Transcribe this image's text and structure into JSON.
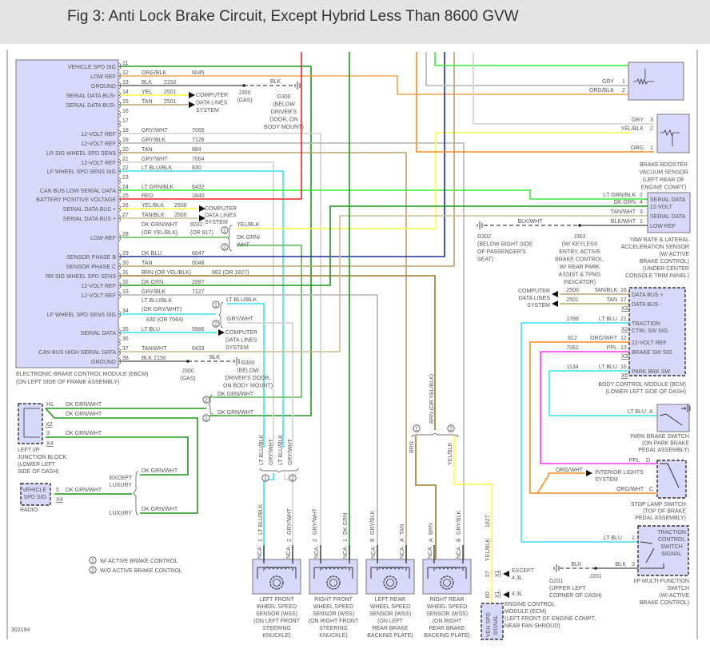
{
  "title": "Fig 3: Anti Lock Brake Circuit, Except Hybrid Less Than 8600 GVW",
  "figure_number": "302194",
  "wire_colors": {
    "dkgrn": "#1a9a1a",
    "dkgrnwht": "#5cb85c",
    "orgblk": "#f2a34e",
    "org": "#ff8a1a",
    "blk": "#666666",
    "yel": "#ffff3a",
    "tan": "#b9a46c",
    "grywht": "#d0d0d0",
    "gryblk": "#b4b4b4",
    "ltblu": "#38e4ec",
    "ltgrn": "#33ee33",
    "red": "#ff2222",
    "dkblu": "#1a2f9c",
    "brn": "#9c7a2c",
    "ppl": "#ff33ff",
    "tanwht": "#cbbd94",
    "module_fill": "#d8d8fb"
  },
  "ebcm": {
    "name_lines": [
      "ELECTRONIC BRAKE CONTROL MODULE (EBCM)",
      "(ON LEFT SIDE OF FRAME ASSEMBLY)"
    ],
    "pins": [
      {
        "pin": "11",
        "label": "VEHICLE SPD SIG",
        "wire": "",
        "circuit": ""
      },
      {
        "pin": "12",
        "label": "LOW REF",
        "wire": "ORG/BLK",
        "circuit": "6045"
      },
      {
        "pin": "13",
        "label": "GROUND",
        "wire": "BLK",
        "circuit": "2150"
      },
      {
        "pin": "14",
        "label": "SERIAL DATA BUS-",
        "wire": "YEL",
        "circuit": "2501"
      },
      {
        "pin": "15",
        "label": "SERIAL DATA BUS-",
        "wire": "TAN",
        "circuit": "2501"
      },
      {
        "pin": "16",
        "label": "",
        "wire": "",
        "circuit": ""
      },
      {
        "pin": "17",
        "label": "",
        "wire": "",
        "circuit": ""
      },
      {
        "pin": "18",
        "label": "12-VOLT REF",
        "wire": "GRY/WHT",
        "circuit": "7065"
      },
      {
        "pin": "19",
        "label": "12-VOLT REF",
        "wire": "GRY/BLK",
        "circuit": "7126"
      },
      {
        "pin": "20",
        "label": "LR SIG WHEEL SPD SENS",
        "wire": "TAN",
        "circuit": "884"
      },
      {
        "pin": "21",
        "label": "12-VOLT REF",
        "wire": "GRY/WHT",
        "circuit": "7064"
      },
      {
        "pin": "22",
        "label": "LF WHEEL SPD SENS SIG",
        "wire": "LT BLU/BLK",
        "circuit": "830"
      },
      {
        "pin": "23",
        "label": "",
        "wire": "",
        "circuit": ""
      },
      {
        "pin": "24",
        "label": "CAN BUS LOW SERIAL DATA",
        "wire": "LT GRN/BLK",
        "circuit": "6432"
      },
      {
        "pin": "25",
        "label": "BATTERY POSITIVE VOLTAGE",
        "wire": "RED",
        "circuit": "1840"
      },
      {
        "pin": "26",
        "label": "SERIAL DATA BUS +",
        "wire": "YEL/BLK",
        "circuit": "2500"
      },
      {
        "pin": "27",
        "label": "SERIAL DATA BUS +",
        "wire": "TAN/BLK",
        "circuit": "2500"
      },
      {
        "pin": "28",
        "label": "LOW REF",
        "wire": "DK GRN/WHT",
        "wire_alt": "(OR YEL/BLK)",
        "circuit": "6032",
        "circuit_alt": "(OR 817)"
      },
      {
        "pin": "29",
        "label": "SENSOR PHASE B",
        "wire": "DK BLU",
        "circuit": "6047"
      },
      {
        "pin": "30",
        "label": "SENSOR PHASE C",
        "wire": "TAN",
        "circuit": "6048"
      },
      {
        "pin": "31",
        "label": "RR SIG WHEEL SPD SENS",
        "wire": "BRN   (OR YEL/BLK)",
        "circuit": "882   (OR 1827)"
      },
      {
        "pin": "32",
        "label": "12-VOLT REF",
        "wire": "DK GRN",
        "circuit": "2087"
      },
      {
        "pin": "33",
        "label": "12-VOLT REF",
        "wire": "GRY/BLK",
        "circuit": "7127"
      },
      {
        "pin": "34",
        "label": "LF WHEEL SPD SENS SIG",
        "wire": "LT BLU/BLK",
        "wire_alt": "(OR GRY/WHT)",
        "circuit": "",
        "circuit_alt": "830    (OR 7064)"
      },
      {
        "pin": "35",
        "label": "SERIAL DATA",
        "wire": "LT BLU",
        "circuit": "5986"
      },
      {
        "pin": "36",
        "label": "",
        "wire": "",
        "circuit": ""
      },
      {
        "pin": "37",
        "label": "CAN BUS HIGH SERIAL DATA",
        "wire": "TAN/WHT",
        "circuit": "6433"
      },
      {
        "pin": "38",
        "label": "GROUND",
        "wire": "BLK  2150",
        "circuit": ""
      }
    ]
  },
  "markers": {
    "one": "1",
    "two": "2"
  },
  "callouts": {
    "computer_data_lines": [
      "COMPUTER",
      "DATA LINES",
      "SYSTEM"
    ],
    "j300": [
      "J300",
      "(GAS)"
    ],
    "g300_top": [
      "G300",
      "(BELOW",
      "DRIVER'S",
      "DOOR, ON",
      "BODY MOUNT)"
    ],
    "g300_bottom": [
      "G300",
      "(BELOW",
      "DRIVER'S DOOR,",
      "ON BODY MOUNT)"
    ],
    "blk": "BLK",
    "splice28_branch1": "YEL/BLK",
    "splice28_branch2": [
      "DK GRN/",
      "WHT"
    ],
    "splice34_branch1": "LT BLU/BLK",
    "splice34_branch2": "GRY/WHT",
    "g302": [
      "G302",
      "(BELOW RIGHT SIDE",
      "OF PASSENGER'S",
      "SEAT)"
    ],
    "j302": [
      "J302",
      "(W/ KEYLESS",
      "ENTRY, ACTIVE",
      "BRAKE CONTROL,",
      "W/ REAR PARK",
      "ASSIST & TPMS",
      "INDICATOR)"
    ],
    "blk_wht": "BLK/WHT"
  },
  "top_sensor": {
    "pins": [
      {
        "wire": "GRY",
        "pin": "1"
      },
      {
        "wire": "ORG/BLK",
        "pin": "2"
      }
    ]
  },
  "brake_booster": {
    "pins": [
      {
        "wire": "GRY",
        "pin": "3"
      },
      {
        "wire": "YEL/BLK",
        "pin": "2"
      },
      {
        "wire": "ORG",
        "pin": "1"
      }
    ],
    "name_lines": [
      "BRAKE BOOSTER",
      "VACUUM SENSOR",
      "(LEFT REAR OF",
      "ENGINE COMPT)"
    ]
  },
  "yaw_sensor": {
    "pins": [
      {
        "wire": "LT GRN/BLK",
        "pin": "2",
        "label": "SERIAL DATA"
      },
      {
        "wire": "DK GRN",
        "pin": "4",
        "label": "12-VOLT"
      },
      {
        "wire": "TAN/WHT",
        "pin": "3",
        "label": "SERIAL DATA"
      },
      {
        "wire": "BLK/WHT",
        "pin": "1",
        "label": "LOW REF"
      }
    ],
    "name_lines": [
      "YAW RATE & LATERAL",
      "ACCELERATION SENSOR",
      "(W/ ACTIVE",
      "BRAKE CONTROL)",
      "(UNDER CENTER",
      "CONSOLE TRIM PANEL)"
    ]
  },
  "bcm": {
    "pins": [
      {
        "circuit": "2500",
        "wire": "TAN/BLK",
        "pin": "16",
        "label": "DATA BUS +"
      },
      {
        "circuit": "2501",
        "wire": "TAN",
        "pin": "17",
        "label": "DATA BUS -"
      },
      {
        "circuit": "1788",
        "wire": "LT BLU",
        "pin": "21",
        "label": "TRACTION",
        "label2": "CTRL SW SIG"
      },
      {
        "circuit": "812",
        "wire": "ORG/WHT",
        "pin": "12",
        "label": "12-VOLT REF"
      },
      {
        "circuit": "7062",
        "wire": "PPL",
        "pin": "13",
        "label": "BRAKE SW SIG"
      },
      {
        "circuit": "1134",
        "wire": "LT BLU",
        "pin": "16",
        "label": "PARK BRK SW"
      }
    ],
    "connectors": [
      "X3",
      "X2",
      "X3",
      "X5"
    ],
    "name_lines": [
      "BODY CONTROL MODULE (BCM)",
      "(LOWER LEFT SIDE OF DASH)"
    ]
  },
  "park_brake_switch": {
    "wire": "LT BLU",
    "pin": "A",
    "name_lines": [
      "PARK BRAKE SWITCH",
      "(ON PARK BRAKE",
      "PEDAL ASSEMBLY)"
    ]
  },
  "stop_lamp_switch": {
    "pins": [
      {
        "wire": "PPL",
        "pin": "D"
      },
      {
        "wire": "ORG/WHT",
        "pin": "C"
      }
    ],
    "branch_wire": "ORG/WHT",
    "interior_lights": [
      "INTERIOR LIGHTS",
      "SYSTEM"
    ],
    "name_lines": [
      "STOP LAMP SWITCH",
      "(TOP OF BRAKE",
      "PEDAL ASSEMBLY)"
    ]
  },
  "traction_switch": {
    "inner": [
      "TRACTION",
      "CONTROL",
      "SWITCH",
      "SIGNAL"
    ],
    "pins": [
      {
        "wire": "LT BLU",
        "pin": "1"
      },
      {
        "wire": "BLK",
        "pin": "3"
      }
    ],
    "ground_wire": "BLK",
    "g201": [
      "G201",
      "(UPPER LEFT",
      "CORNER OF DASH)"
    ],
    "j201": "J201",
    "name_lines": [
      "I/P MULTI-FUNCTION",
      "SWITCH",
      "(W/ ACTIVE",
      "BRAKE CONTROL)"
    ]
  },
  "ecm": {
    "wire": "YEL/BLK",
    "circuit": "1827",
    "pins": [
      {
        "pin": "57",
        "conn": "X1",
        "note": [
          "EXCEPT",
          "4.3L"
        ]
      },
      {
        "pin": "60",
        "conn": "X1",
        "note": [
          "4.3L"
        ]
      }
    ],
    "inner": [
      "VEH SPD",
      "SIGNAL"
    ],
    "name_lines": [
      "ENGINE CONTROL",
      "MODULE (ECM)",
      "(LEFT FRONT OF ENGINE COMPT,",
      "NEAR FAN SHROUD)"
    ]
  },
  "rr_splice": {
    "wire_in": "BRN (OR YEL/BLK)",
    "branch1": "BRN",
    "branch2": "YEL/BLK"
  },
  "lf_splice": {
    "wires": [
      "LT BLU/BLK",
      "GRY/WHT",
      "LT BLU/BLK",
      "GRY/WHT"
    ]
  },
  "sensor_pins": [
    {
      "pin": "1",
      "wire": "LT BLU/BLK"
    },
    {
      "pin": "2",
      "wire": "GRY/WHT"
    },
    {
      "pin": "2",
      "wire": "GRY/WHT"
    },
    {
      "pin": "1",
      "wire": "DK GRN"
    },
    {
      "pin": "B",
      "wire": "GRY/BLK"
    },
    {
      "pin": "A",
      "wire": "TAN"
    },
    {
      "pin": "A",
      "wire": "BRN"
    },
    {
      "pin": "B",
      "wire": "GRY/BLK"
    }
  ],
  "nca": "NCA",
  "wheel_sensors": [
    {
      "name_lines": [
        "LEFT FRONT",
        "WHEEL SPEED",
        "SENSOR (WSS)",
        "(ON LEFT FRONT",
        "STEERING",
        "KNUCKLE)"
      ]
    },
    {
      "name_lines": [
        "RIGHT FRONT",
        "WHEEL SPEED",
        "SENSOR (WSS)",
        "(ON RIGHT FRONT",
        "STEERING",
        "KNUCKLE)"
      ]
    },
    {
      "name_lines": [
        "LEFT REAR",
        "WHEEL SPEED",
        "SENSOR (WSS)",
        "(ON LEFT",
        "REAR BRAKE",
        "BACKING PLATE)"
      ]
    },
    {
      "name_lines": [
        "RIGHT REAR",
        "WHEEL SPEED",
        "SENSOR (WSS)",
        "(ON RIGHT",
        "REAR BRAKE",
        "BACKING PLATE)"
      ]
    }
  ],
  "junction_block": {
    "pins": [
      {
        "pin": "H1",
        "wire": "DK GRN/WHT"
      },
      {
        "pin": "",
        "wire": "DK GRN/WHT"
      },
      {
        "pin": "3",
        "wire": "DK GRN/WHT"
      }
    ],
    "connectors": [
      "X2",
      "X4"
    ],
    "name_lines": [
      "LEFT I/P",
      "JUNCTION BLOCK",
      "(LOWER LEFT",
      "SIDE OF DASH)"
    ],
    "splice_wires": [
      "DK GRN/WHT",
      "DK GRN/WHT"
    ]
  },
  "radio": {
    "inner": [
      "VEHICLE",
      "SPD SIG"
    ],
    "pin": "5",
    "wire": "DK GRN/WHT",
    "conn": "X4",
    "name": "RADIO",
    "except_luxury": [
      "EXCEPT",
      "LUXURY"
    ],
    "luxury": "LUXURY",
    "branch_wire": "DK GRN/WHT"
  },
  "legend": [
    {
      "marker": "1",
      "text": "W/ ACTIVE BRAKE CONTROL"
    },
    {
      "marker": "2",
      "text": "W/O ACTIVE BRAKE CONTROL"
    }
  ]
}
